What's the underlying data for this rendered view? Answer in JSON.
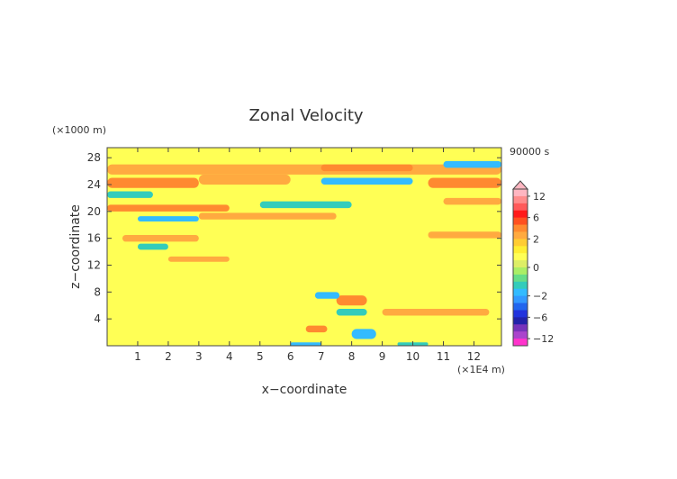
{
  "chart_data": {
    "type": "heatmap",
    "title": "Zonal Velocity",
    "xlabel": "x−coordinate",
    "ylabel": "z−coordinate",
    "x_unit": "(×1E4 m)",
    "y_unit": "(×1000 m)",
    "time_label": "90000 s",
    "xlim": [
      0,
      12.9
    ],
    "ylim": [
      0,
      29.5
    ],
    "x_ticks": [
      "1",
      "2",
      "3",
      "4",
      "5",
      "6",
      "7",
      "8",
      "9",
      "10",
      "11",
      "12"
    ],
    "x_tick_values": [
      1,
      2,
      3,
      4,
      5,
      6,
      7,
      8,
      9,
      10,
      11,
      12
    ],
    "y_ticks": [
      "4",
      "8",
      "12",
      "16",
      "20",
      "24",
      "28"
    ],
    "y_tick_values": [
      4,
      8,
      12,
      16,
      20,
      24,
      28
    ],
    "colorbar": {
      "ticks": [
        "12",
        "6",
        "2",
        "0",
        "−2",
        "−6",
        "−12"
      ],
      "tick_values": [
        12,
        6,
        2,
        0,
        -2,
        -6,
        -12
      ],
      "levels": [
        {
          "lo": 12,
          "hi": 14,
          "color": "#ffb6c1"
        },
        {
          "lo": 10,
          "hi": 12,
          "color": "#ff8c8c"
        },
        {
          "lo": 8,
          "hi": 10,
          "color": "#ff5a5a"
        },
        {
          "lo": 6,
          "hi": 8,
          "color": "#ff1a1a"
        },
        {
          "lo": 4,
          "hi": 6,
          "color": "#ff5020"
        },
        {
          "lo": 3,
          "hi": 4,
          "color": "#ff8a30"
        },
        {
          "lo": 2,
          "hi": 3,
          "color": "#ffaa40"
        },
        {
          "lo": 1.5,
          "hi": 2,
          "color": "#ffcc33"
        },
        {
          "lo": 1,
          "hi": 1.5,
          "color": "#ffee33"
        },
        {
          "lo": 0.5,
          "hi": 1,
          "color": "#ffff55"
        },
        {
          "lo": 0,
          "hi": 0.5,
          "color": "#ddee66"
        },
        {
          "lo": -0.5,
          "hi": 0,
          "color": "#aaee66"
        },
        {
          "lo": -1,
          "hi": -0.5,
          "color": "#66dd88"
        },
        {
          "lo": -1.5,
          "hi": -1,
          "color": "#33ccbb"
        },
        {
          "lo": -2,
          "hi": -1.5,
          "color": "#33bbff"
        },
        {
          "lo": -3,
          "hi": -2,
          "color": "#3399ff"
        },
        {
          "lo": -4,
          "hi": -3,
          "color": "#2266ee"
        },
        {
          "lo": -6,
          "hi": -4,
          "color": "#2233dd"
        },
        {
          "lo": -8,
          "hi": -6,
          "color": "#2222aa"
        },
        {
          "lo": -10,
          "hi": -8,
          "color": "#7733bb"
        },
        {
          "lo": -12,
          "hi": -10,
          "color": "#aa44cc"
        },
        {
          "lo": -14,
          "hi": -12,
          "color": "#ff33cc"
        }
      ]
    },
    "field_features": [
      {
        "x": [
          0,
          12.9
        ],
        "z": [
          25.5,
          27
        ],
        "value": 2.5
      },
      {
        "x": [
          0,
          3
        ],
        "z": [
          23.5,
          25
        ],
        "value": 3.5
      },
      {
        "x": [
          10.5,
          12.9
        ],
        "z": [
          23.5,
          25
        ],
        "value": 3
      },
      {
        "x": [
          3,
          6
        ],
        "z": [
          24,
          25.5
        ],
        "value": 2
      },
      {
        "x": [
          7,
          10
        ],
        "z": [
          26,
          27
        ],
        "value": 3
      },
      {
        "x": [
          0,
          1.5
        ],
        "z": [
          22,
          23
        ],
        "value": -1.5
      },
      {
        "x": [
          11,
          12.9
        ],
        "z": [
          26.5,
          27.5
        ],
        "value": -2
      },
      {
        "x": [
          0,
          4
        ],
        "z": [
          20,
          21
        ],
        "value": 3
      },
      {
        "x": [
          3,
          7.5
        ],
        "z": [
          18.8,
          19.8
        ],
        "value": 2.5
      },
      {
        "x": [
          7,
          10
        ],
        "z": [
          24,
          25
        ],
        "value": -2
      },
      {
        "x": [
          5,
          8
        ],
        "z": [
          20.5,
          21.5
        ],
        "value": -1.5
      },
      {
        "x": [
          1,
          3
        ],
        "z": [
          18.5,
          19.3
        ],
        "value": -2
      },
      {
        "x": [
          11,
          12.9
        ],
        "z": [
          21,
          22
        ],
        "value": 2
      },
      {
        "x": [
          0.5,
          3
        ],
        "z": [
          15.5,
          16.5
        ],
        "value": 2
      },
      {
        "x": [
          10.5,
          12.9
        ],
        "z": [
          16,
          17
        ],
        "value": 2.5
      },
      {
        "x": [
          1,
          2
        ],
        "z": [
          14.3,
          15.2
        ],
        "value": -1.5
      },
      {
        "x": [
          2,
          4
        ],
        "z": [
          12.5,
          13.3
        ],
        "value": 2
      },
      {
        "x": [
          9,
          12.5
        ],
        "z": [
          4.5,
          5.5
        ],
        "value": 2.5
      },
      {
        "x": [
          7.5,
          8.5
        ],
        "z": [
          6,
          7.5
        ],
        "value": 3
      },
      {
        "x": [
          6.8,
          7.6
        ],
        "z": [
          7,
          8
        ],
        "value": -2
      },
      {
        "x": [
          8,
          8.8
        ],
        "z": [
          1,
          2.5
        ],
        "value": -2
      },
      {
        "x": [
          6.5,
          7.2
        ],
        "z": [
          2,
          3
        ],
        "value": 3
      },
      {
        "x": [
          6,
          7
        ],
        "z": [
          0,
          0.5
        ],
        "value": -2
      },
      {
        "x": [
          9.5,
          10.5
        ],
        "z": [
          0,
          0.5
        ],
        "value": -1.5
      },
      {
        "x": [
          7.5,
          8.5
        ],
        "z": [
          4.5,
          5.5
        ],
        "value": -1.5
      }
    ]
  }
}
